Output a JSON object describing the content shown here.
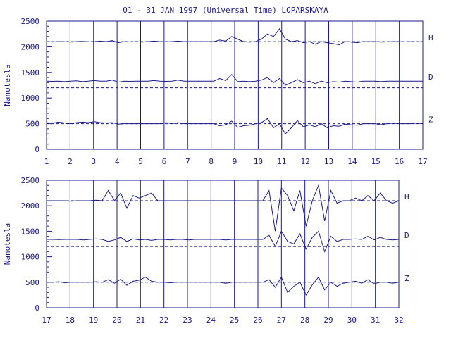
{
  "title": "01 - 31 JAN 1997 (Universal Time) LOPARSKAYA",
  "colors": {
    "ink": "#1a1a8c",
    "background": "#ffffff"
  },
  "chart_data": [
    {
      "type": "line",
      "ylabel": "Nanotesla",
      "ylim": [
        0,
        2500
      ],
      "yticks": [
        0,
        500,
        1000,
        1500,
        2000,
        2500
      ],
      "xlim": [
        1,
        17
      ],
      "xticks": [
        "1",
        "2",
        "3",
        "4",
        "5",
        "6",
        "7",
        "8",
        "9",
        "10",
        "11",
        "12",
        "13",
        "14",
        "15",
        "16",
        "17"
      ],
      "grid": "vertical at each day",
      "baselines": [
        {
          "label": "H",
          "value": 2100
        },
        {
          "label": "D",
          "value": 1200
        },
        {
          "label": "Z",
          "value": 500
        }
      ],
      "series": [
        {
          "name": "H",
          "values": [
            2100,
            2095,
            2100,
            2098,
            2090,
            2100,
            2105,
            2095,
            2100,
            2110,
            2100,
            2120,
            2080,
            2100,
            2095,
            2100,
            2090,
            2100,
            2110,
            2100,
            2095,
            2100,
            2110,
            2100,
            2100,
            2100,
            2100,
            2100,
            2100,
            2130,
            2110,
            2200,
            2150,
            2100,
            2090,
            2100,
            2150,
            2250,
            2200,
            2350,
            2150,
            2100,
            2120,
            2080,
            2100,
            2050,
            2100,
            2080,
            2060,
            2040,
            2100,
            2090,
            2080,
            2100,
            2100,
            2100,
            2090,
            2095,
            2100,
            2100,
            2095,
            2100,
            2095,
            2100
          ]
        },
        {
          "name": "D",
          "values": [
            1330,
            1325,
            1330,
            1320,
            1330,
            1335,
            1320,
            1330,
            1340,
            1330,
            1330,
            1350,
            1310,
            1330,
            1325,
            1330,
            1330,
            1330,
            1340,
            1330,
            1325,
            1330,
            1350,
            1330,
            1330,
            1330,
            1330,
            1330,
            1330,
            1380,
            1340,
            1460,
            1320,
            1330,
            1320,
            1330,
            1350,
            1400,
            1300,
            1380,
            1250,
            1300,
            1360,
            1300,
            1330,
            1280,
            1330,
            1300,
            1320,
            1310,
            1330,
            1320,
            1310,
            1330,
            1330,
            1330,
            1320,
            1330,
            1330,
            1330,
            1330,
            1330,
            1330,
            1330
          ]
        },
        {
          "name": "Z",
          "values": [
            520,
            510,
            530,
            515,
            500,
            520,
            530,
            520,
            540,
            520,
            515,
            520,
            490,
            500,
            500,
            500,
            500,
            500,
            500,
            500,
            520,
            500,
            520,
            500,
            500,
            500,
            500,
            500,
            500,
            460,
            480,
            550,
            430,
            460,
            470,
            500,
            520,
            600,
            420,
            500,
            300,
            420,
            560,
            440,
            480,
            440,
            500,
            420,
            460,
            450,
            490,
            480,
            470,
            500,
            500,
            500,
            480,
            500,
            510,
            500,
            500,
            500,
            510,
            500
          ]
        }
      ]
    },
    {
      "type": "line",
      "ylabel": "Nanotesla",
      "ylim": [
        0,
        2500
      ],
      "yticks": [
        0,
        500,
        1000,
        1500,
        2000,
        2500
      ],
      "xlim": [
        17,
        32
      ],
      "xticks": [
        "17",
        "18",
        "19",
        "20",
        "21",
        "22",
        "23",
        "24",
        "25",
        "26",
        "27",
        "28",
        "29",
        "30",
        "31",
        "32"
      ],
      "grid": "vertical at each day",
      "baselines": [
        {
          "label": "H",
          "value": 2100
        },
        {
          "label": "D",
          "value": 1200
        },
        {
          "label": "Z",
          "value": 500
        }
      ],
      "series": [
        {
          "name": "H",
          "values": [
            2100,
            2100,
            2100,
            2100,
            2090,
            2100,
            2100,
            2100,
            2110,
            2100,
            2300,
            2100,
            2250,
            1950,
            2200,
            2150,
            2200,
            2250,
            2100,
            2100,
            2100,
            2100,
            2100,
            2100,
            2100,
            2100,
            2100,
            2100,
            2100,
            2100,
            2100,
            2100,
            2100,
            2100,
            2100,
            2100,
            2300,
            1500,
            2350,
            2200,
            1900,
            2300,
            1600,
            2100,
            2400,
            1700,
            2300,
            2050,
            2100,
            2100,
            2150,
            2100,
            2200,
            2100,
            2250,
            2100,
            2050,
            2100
          ]
        },
        {
          "name": "D",
          "values": [
            1340,
            1340,
            1335,
            1340,
            1340,
            1340,
            1330,
            1340,
            1350,
            1340,
            1300,
            1330,
            1380,
            1300,
            1350,
            1330,
            1340,
            1320,
            1340,
            1340,
            1330,
            1340,
            1340,
            1330,
            1340,
            1340,
            1340,
            1340,
            1340,
            1330,
            1340,
            1340,
            1340,
            1340,
            1340,
            1340,
            1420,
            1200,
            1500,
            1300,
            1250,
            1450,
            1150,
            1380,
            1500,
            1100,
            1400,
            1300,
            1340,
            1340,
            1350,
            1340,
            1400,
            1330,
            1380,
            1340,
            1330,
            1340
          ]
        },
        {
          "name": "Z",
          "values": [
            500,
            500,
            510,
            490,
            500,
            500,
            500,
            500,
            510,
            500,
            550,
            480,
            560,
            440,
            520,
            540,
            600,
            520,
            500,
            500,
            490,
            500,
            500,
            500,
            500,
            500,
            500,
            500,
            500,
            480,
            500,
            500,
            500,
            500,
            500,
            500,
            550,
            400,
            600,
            300,
            420,
            500,
            250,
            450,
            600,
            350,
            500,
            420,
            480,
            500,
            520,
            480,
            550,
            470,
            500,
            500,
            480,
            500
          ]
        }
      ]
    }
  ]
}
